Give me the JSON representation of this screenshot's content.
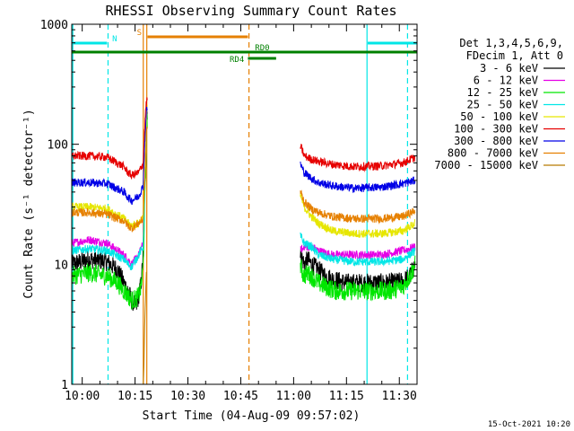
{
  "chart_data": {
    "type": "line",
    "title": "RHESSI Observing Summary Count Rates",
    "xlabel": "Start Time (04-Aug-09 09:57:02)",
    "ylabel": "Count Rate (s⁻¹ detector⁻¹)",
    "yscale": "log",
    "ylim": [
      1,
      1000
    ],
    "xlim_minutes_after_start": [
      0,
      98
    ],
    "x_ticks": [
      {
        "label": "10:00",
        "t": 2.97
      },
      {
        "label": "10:15",
        "t": 17.97
      },
      {
        "label": "10:30",
        "t": 32.97
      },
      {
        "label": "10:45",
        "t": 47.97
      },
      {
        "label": "11:00",
        "t": 62.97
      },
      {
        "label": "11:15",
        "t": 77.97
      },
      {
        "label": "11:30",
        "t": 92.97
      }
    ],
    "y_ticks": [
      {
        "label": "1",
        "v": 1
      },
      {
        "label": "10",
        "v": 10
      },
      {
        "label": "100",
        "v": 100
      },
      {
        "label": "1000",
        "v": 1000
      }
    ],
    "legend_header": [
      "Det 1,3,4,5,6,9,",
      "FDecim 1, Att 0"
    ],
    "legend_position": "right",
    "footer_date": "15-Oct-2021 10:20",
    "series": [
      {
        "name": "3 - 6 keV",
        "color": "#000000",
        "x": [
          0,
          5,
          10,
          13,
          14.8,
          16,
          17,
          18.4,
          19,
          19.7,
          20.3,
          20.6,
          21,
          21.3,
          65,
          65.5,
          66,
          67,
          68,
          69,
          70,
          72,
          74,
          78,
          85,
          90,
          94,
          96,
          97.5
        ],
        "y": [
          10,
          11,
          10.5,
          9,
          7,
          6,
          5,
          4.5,
          5.5,
          7,
          12,
          30,
          70,
          190,
          12,
          11,
          10,
          11,
          10,
          9.5,
          9,
          8,
          7.5,
          7,
          7,
          7,
          7.2,
          8,
          10
        ]
      },
      {
        "name": "6 - 12 keV",
        "color": "#e600e6",
        "x": [
          0,
          5,
          10,
          14.8,
          16,
          17,
          19,
          20.3,
          20.6,
          21,
          21.3,
          65,
          65.5,
          66,
          68,
          70,
          74,
          80,
          88,
          94,
          97.5
        ],
        "y": [
          15,
          16,
          15,
          12,
          11,
          10,
          12,
          15,
          35,
          80,
          200,
          14,
          13,
          14,
          14,
          13,
          12,
          12,
          12,
          13,
          14
        ]
      },
      {
        "name": "12 - 25 keV",
        "color": "#00e600",
        "x": [
          0,
          5,
          10,
          13,
          14.8,
          16,
          17,
          18.4,
          19,
          19.7,
          20.3,
          20.6,
          21,
          21.3,
          65,
          65.5,
          66,
          67,
          68,
          70,
          72,
          75,
          80,
          90,
          94,
          96,
          97.5
        ],
        "y": [
          8,
          8.5,
          8,
          7,
          6,
          5.5,
          5,
          5.2,
          5.5,
          6.5,
          10,
          25,
          60,
          160,
          9.5,
          8.5,
          8,
          8.5,
          8,
          7,
          6.5,
          6,
          6,
          6,
          6.5,
          8,
          10
        ]
      },
      {
        "name": "25 - 50 keV",
        "color": "#00e6e6",
        "x": [
          0,
          5,
          10,
          14.8,
          16,
          17,
          19,
          20.3,
          20.6,
          21,
          21.3,
          65,
          65.5,
          66,
          68,
          70,
          74,
          80,
          88,
          94,
          97.5
        ],
        "y": [
          13,
          13.5,
          13,
          11,
          10,
          9.5,
          12,
          14,
          35,
          80,
          200,
          17,
          16,
          15,
          14,
          12,
          11,
          10.5,
          10.5,
          11,
          13
        ]
      },
      {
        "name": "50 - 100 keV",
        "color": "#e6e600",
        "x": [
          0,
          5,
          10,
          14.8,
          16,
          17,
          19,
          20.3,
          20.6,
          21,
          21.3,
          65,
          65.5,
          66,
          68,
          70,
          74,
          80,
          88,
          94,
          97.5
        ],
        "y": [
          30,
          30,
          29,
          24,
          22,
          21,
          22,
          25,
          45,
          90,
          200,
          37,
          33,
          30,
          25,
          22,
          19,
          18,
          18,
          19,
          22
        ]
      },
      {
        "name": "100 - 300 keV",
        "color": "#e60000",
        "x": [
          0,
          5,
          10,
          14.8,
          16,
          17,
          19,
          20.3,
          20.6,
          21,
          21.3,
          65,
          65.5,
          66,
          68,
          70,
          74,
          80,
          88,
          94,
          97.5
        ],
        "y": [
          80,
          80,
          78,
          65,
          58,
          55,
          58,
          70,
          120,
          200,
          230,
          95,
          88,
          80,
          75,
          72,
          68,
          65,
          66,
          70,
          78
        ]
      },
      {
        "name": "300 - 800 keV",
        "color": "#0000e6",
        "x": [
          0,
          5,
          10,
          14.8,
          16,
          17,
          19,
          20.3,
          20.6,
          21,
          21.3,
          65,
          65.5,
          66,
          68,
          70,
          74,
          80,
          88,
          94,
          97.5
        ],
        "y": [
          48,
          48,
          47,
          40,
          36,
          34,
          37,
          45,
          85,
          150,
          200,
          68,
          62,
          58,
          52,
          48,
          45,
          43,
          44,
          47,
          50
        ]
      },
      {
        "name": "800 - 7000 keV",
        "color": "#e68000",
        "x": [
          0,
          5,
          10,
          14.8,
          16,
          17,
          19,
          20.3,
          20.6,
          21,
          21.3,
          65,
          65.5,
          66,
          68,
          70,
          74,
          80,
          88,
          94,
          97.5
        ],
        "y": [
          27,
          27,
          26,
          23,
          21,
          20,
          22,
          24,
          40,
          70,
          140,
          40,
          36,
          33,
          29,
          27,
          25,
          24,
          24,
          25,
          28
        ]
      },
      {
        "name": "7000 - 15000 keV",
        "color": "#b87a00",
        "x": [
          20.3,
          20.5,
          20.7,
          21,
          21.2
        ],
        "y": [
          1,
          1.5,
          3,
          6,
          9
        ]
      }
    ],
    "state_bars": [
      {
        "label": "N",
        "color": "#00e6e6",
        "segments": [
          [
            0,
            10
          ]
        ],
        "label_at": 11.5,
        "row": "top"
      },
      {
        "label": "N",
        "color": "#00e6e6",
        "segments": [
          [
            84,
            98
          ]
        ],
        "label_at": null,
        "row": "top"
      },
      {
        "label": "S",
        "color": "#e68000",
        "segments": [
          [
            21.5,
            50
          ]
        ],
        "label_at": 18.5,
        "row": "upper"
      },
      {
        "label": "RD0",
        "color": "#008000",
        "segments": [
          [
            0,
            98
          ]
        ],
        "label_at": 52,
        "row": "middle"
      },
      {
        "label": "RD4",
        "color": "#008000",
        "segments": [
          [
            50,
            58
          ]
        ],
        "label_at": 44.8,
        "row": "lower"
      }
    ],
    "vertical_lines": [
      {
        "t": 0.3,
        "color": "#00e6e6",
        "dashed": false
      },
      {
        "t": 10.3,
        "color": "#00e6e6",
        "dashed": true
      },
      {
        "t": 20.3,
        "color": "#e68000",
        "dashed": false
      },
      {
        "t": 21.3,
        "color": "#e68000",
        "dashed": false
      },
      {
        "t": 50.3,
        "color": "#e68000",
        "dashed": true
      },
      {
        "t": 83.8,
        "color": "#00e6e6",
        "dashed": false
      },
      {
        "t": 95.3,
        "color": "#00e6e6",
        "dashed": true
      }
    ],
    "gaps": [
      [
        21.5,
        64.8
      ]
    ]
  }
}
